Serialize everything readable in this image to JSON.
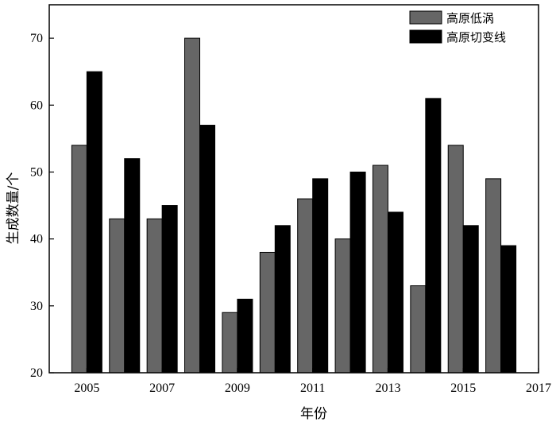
{
  "chart_data": {
    "type": "bar",
    "title": "",
    "xlabel": "年份",
    "ylabel": "生成数量/个",
    "xlim": [
      2004,
      2017
    ],
    "ylim": [
      20,
      75
    ],
    "x_ticks": [
      2005,
      2007,
      2009,
      2011,
      2013,
      2015,
      2017
    ],
    "y_ticks": [
      20,
      30,
      40,
      50,
      60,
      70
    ],
    "categories": [
      2005,
      2006,
      2007,
      2008,
      2009,
      2010,
      2011,
      2012,
      2013,
      2014,
      2015,
      2016
    ],
    "series": [
      {
        "name": "高原低涡",
        "color": "#666666",
        "values": [
          54,
          43,
          43,
          70,
          29,
          38,
          46,
          40,
          51,
          33,
          54,
          49
        ]
      },
      {
        "name": "高原切变线",
        "color": "#000000",
        "values": [
          65,
          52,
          45,
          57,
          31,
          42,
          49,
          50,
          44,
          61,
          42,
          39
        ]
      }
    ],
    "legend_position": "top-right",
    "grid": false
  }
}
